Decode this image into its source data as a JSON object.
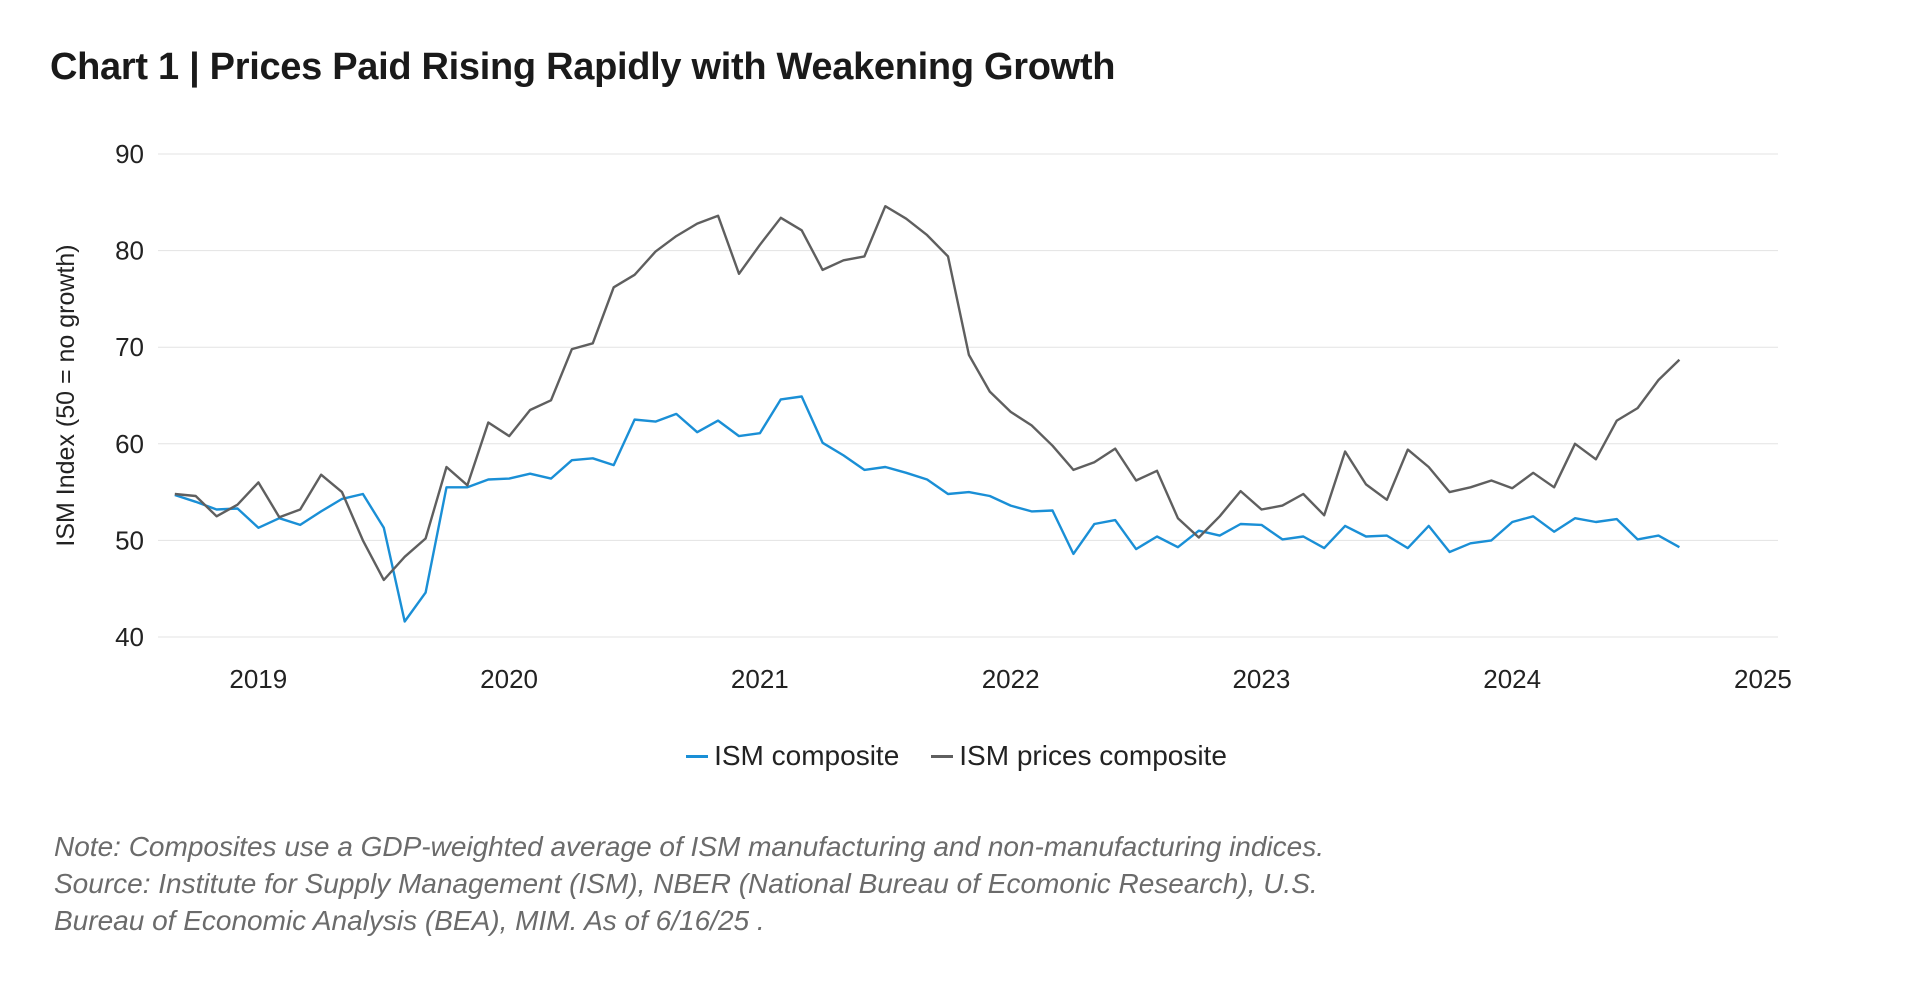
{
  "chart_data": {
    "type": "line",
    "title": "Chart 1 | Prices Paid Rising Rapidly with Weakening Growth",
    "xlabel": "",
    "ylabel": "ISM Index (50 = no growth)",
    "ylim": [
      40,
      90
    ],
    "yticks": [
      40,
      50,
      60,
      70,
      80,
      90
    ],
    "xlim": [
      2018.6,
      2025.06
    ],
    "xticks": [
      {
        "label": "2019",
        "x": 2019.0
      },
      {
        "label": "2020",
        "x": 2020.0
      },
      {
        "label": "2021",
        "x": 2021.0
      },
      {
        "label": "2022",
        "x": 2022.0
      },
      {
        "label": "2023",
        "x": 2023.0
      },
      {
        "label": "2024",
        "x": 2024.0
      },
      {
        "label": "2025",
        "x": 2025.0
      }
    ],
    "grid": true,
    "legend_position": "bottom-center",
    "x_start": 2018.667,
    "x_step": 0.0833333,
    "series": [
      {
        "name": "ISM composite",
        "color": "#1a8fd6",
        "values": [
          54.7,
          54.0,
          53.2,
          53.3,
          51.3,
          52.3,
          51.6,
          53.0,
          54.3,
          54.8,
          51.3,
          41.6,
          44.6,
          55.5,
          55.5,
          56.3,
          56.4,
          56.9,
          56.4,
          58.3,
          58.5,
          57.8,
          62.5,
          62.3,
          63.1,
          61.2,
          62.4,
          60.8,
          61.1,
          64.6,
          64.9,
          60.1,
          58.8,
          57.3,
          57.6,
          57.0,
          56.3,
          54.8,
          55.0,
          54.6,
          53.6,
          53.0,
          53.1,
          48.6,
          51.7,
          52.1,
          49.1,
          50.4,
          49.3,
          51.0,
          50.5,
          51.7,
          51.6,
          50.1,
          50.4,
          49.2,
          51.5,
          50.4,
          50.5,
          49.2,
          51.5,
          48.8,
          49.7,
          50.0,
          51.9,
          52.5,
          50.9,
          52.3,
          51.9,
          52.2,
          50.1,
          50.5,
          49.3
        ]
      },
      {
        "name": "ISM prices composite",
        "color": "#5f5f5f",
        "values": [
          54.8,
          54.6,
          52.5,
          53.7,
          56.0,
          52.4,
          53.2,
          56.8,
          55.0,
          50.0,
          45.9,
          48.3,
          50.2,
          57.6,
          55.7,
          62.2,
          60.8,
          63.5,
          64.5,
          69.8,
          70.4,
          76.2,
          77.5,
          79.9,
          81.5,
          82.8,
          83.6,
          77.6,
          80.6,
          83.4,
          82.1,
          78.0,
          79.0,
          79.4,
          84.6,
          83.3,
          81.6,
          79.4,
          69.2,
          65.4,
          63.3,
          61.9,
          59.8,
          57.3,
          58.1,
          59.5,
          56.2,
          57.2,
          52.3,
          50.3,
          52.5,
          55.1,
          53.2,
          53.6,
          54.8,
          52.6,
          59.2,
          55.8,
          54.2,
          59.4,
          57.6,
          55.0,
          55.5,
          56.2,
          55.4,
          57.0,
          55.5,
          60.0,
          58.4,
          62.4,
          63.7,
          66.6,
          68.7
        ]
      }
    ],
    "note_lines": [
      "Note: Composites use a GDP-weighted average of ISM manufacturing and non-manufacturing indices.",
      "Source: Institute for Supply Management (ISM), NBER (National Bureau of Ecomonic Research), U.S.",
      "Bureau of Economic Analysis (BEA), MIM. As of 6/16/25 ."
    ]
  }
}
